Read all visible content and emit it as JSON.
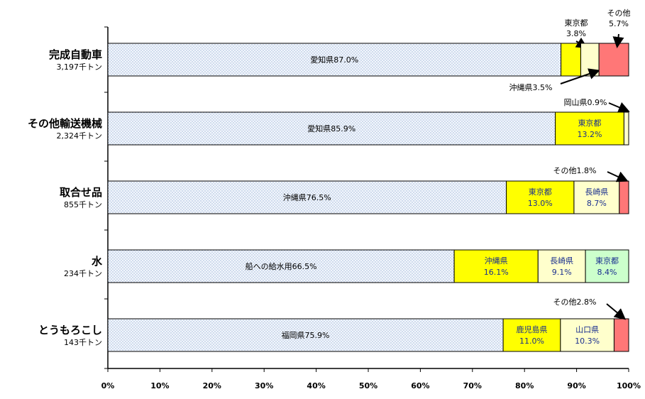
{
  "chart_data": {
    "type": "bar",
    "orientation": "horizontal",
    "stacked": true,
    "xlim": [
      0,
      100
    ],
    "x_ticks": [
      "0%",
      "10%",
      "20%",
      "30%",
      "40%",
      "50%",
      "60%",
      "70%",
      "80%",
      "90%",
      "100%"
    ],
    "colors": {
      "dotted": "#e8f0fa",
      "yellow": "#ffff00",
      "cream": "#ffffcc",
      "green": "#ccffcc",
      "red": "#ff7777"
    },
    "categories": [
      {
        "name": "完成自動車",
        "total": "3,197千トン",
        "segments": [
          {
            "label": "愛知県87.0%",
            "value": 87.0,
            "color": "dotted"
          },
          {
            "label": "東京都\n3.8%",
            "value": 3.8,
            "color": "yellow",
            "callout": true
          },
          {
            "label": "沖縄県3.5%",
            "value": 3.5,
            "color": "cream",
            "callout": true
          },
          {
            "label": "その他\n5.7%",
            "value": 5.7,
            "color": "red",
            "callout": true
          }
        ]
      },
      {
        "name": "その他輸送機械",
        "total": "2,324千トン",
        "segments": [
          {
            "label": "愛知県85.9%",
            "value": 85.9,
            "color": "dotted"
          },
          {
            "label": "東京都\n13.2%",
            "value": 13.2,
            "color": "yellow",
            "text_color": "blue"
          },
          {
            "label": "岡山県0.9%",
            "value": 0.9,
            "color": "cream",
            "callout": true
          }
        ]
      },
      {
        "name": "取合せ品",
        "total": "855千トン",
        "segments": [
          {
            "label": "沖縄県76.5%",
            "value": 76.5,
            "color": "dotted"
          },
          {
            "label": "東京都\n13.0%",
            "value": 13.0,
            "color": "yellow",
            "text_color": "blue"
          },
          {
            "label": "長崎県\n8.7%",
            "value": 8.7,
            "color": "cream",
            "text_color": "blue"
          },
          {
            "label": "その他1.8%",
            "value": 1.8,
            "color": "red",
            "callout": true
          }
        ]
      },
      {
        "name": "水",
        "total": "234千トン",
        "segments": [
          {
            "label": "船への給水用66.5%",
            "value": 66.5,
            "color": "dotted"
          },
          {
            "label": "沖縄県\n16.1%",
            "value": 16.1,
            "color": "yellow",
            "text_color": "blue"
          },
          {
            "label": "長崎県\n9.1%",
            "value": 9.1,
            "color": "cream",
            "text_color": "blue"
          },
          {
            "label": "東京都\n8.4%",
            "value": 8.4,
            "color": "green",
            "text_color": "blue"
          }
        ]
      },
      {
        "name": "とうもろこし",
        "total": "143千トン",
        "segments": [
          {
            "label": "福岡県75.9%",
            "value": 75.9,
            "color": "dotted"
          },
          {
            "label": "鹿児島県\n11.0%",
            "value": 11.0,
            "color": "yellow",
            "text_color": "blue"
          },
          {
            "label": "山口県\n10.3%",
            "value": 10.3,
            "color": "cream",
            "text_color": "blue"
          },
          {
            "label": "その他2.8%",
            "value": 2.8,
            "color": "red",
            "callout": true
          }
        ]
      }
    ]
  }
}
